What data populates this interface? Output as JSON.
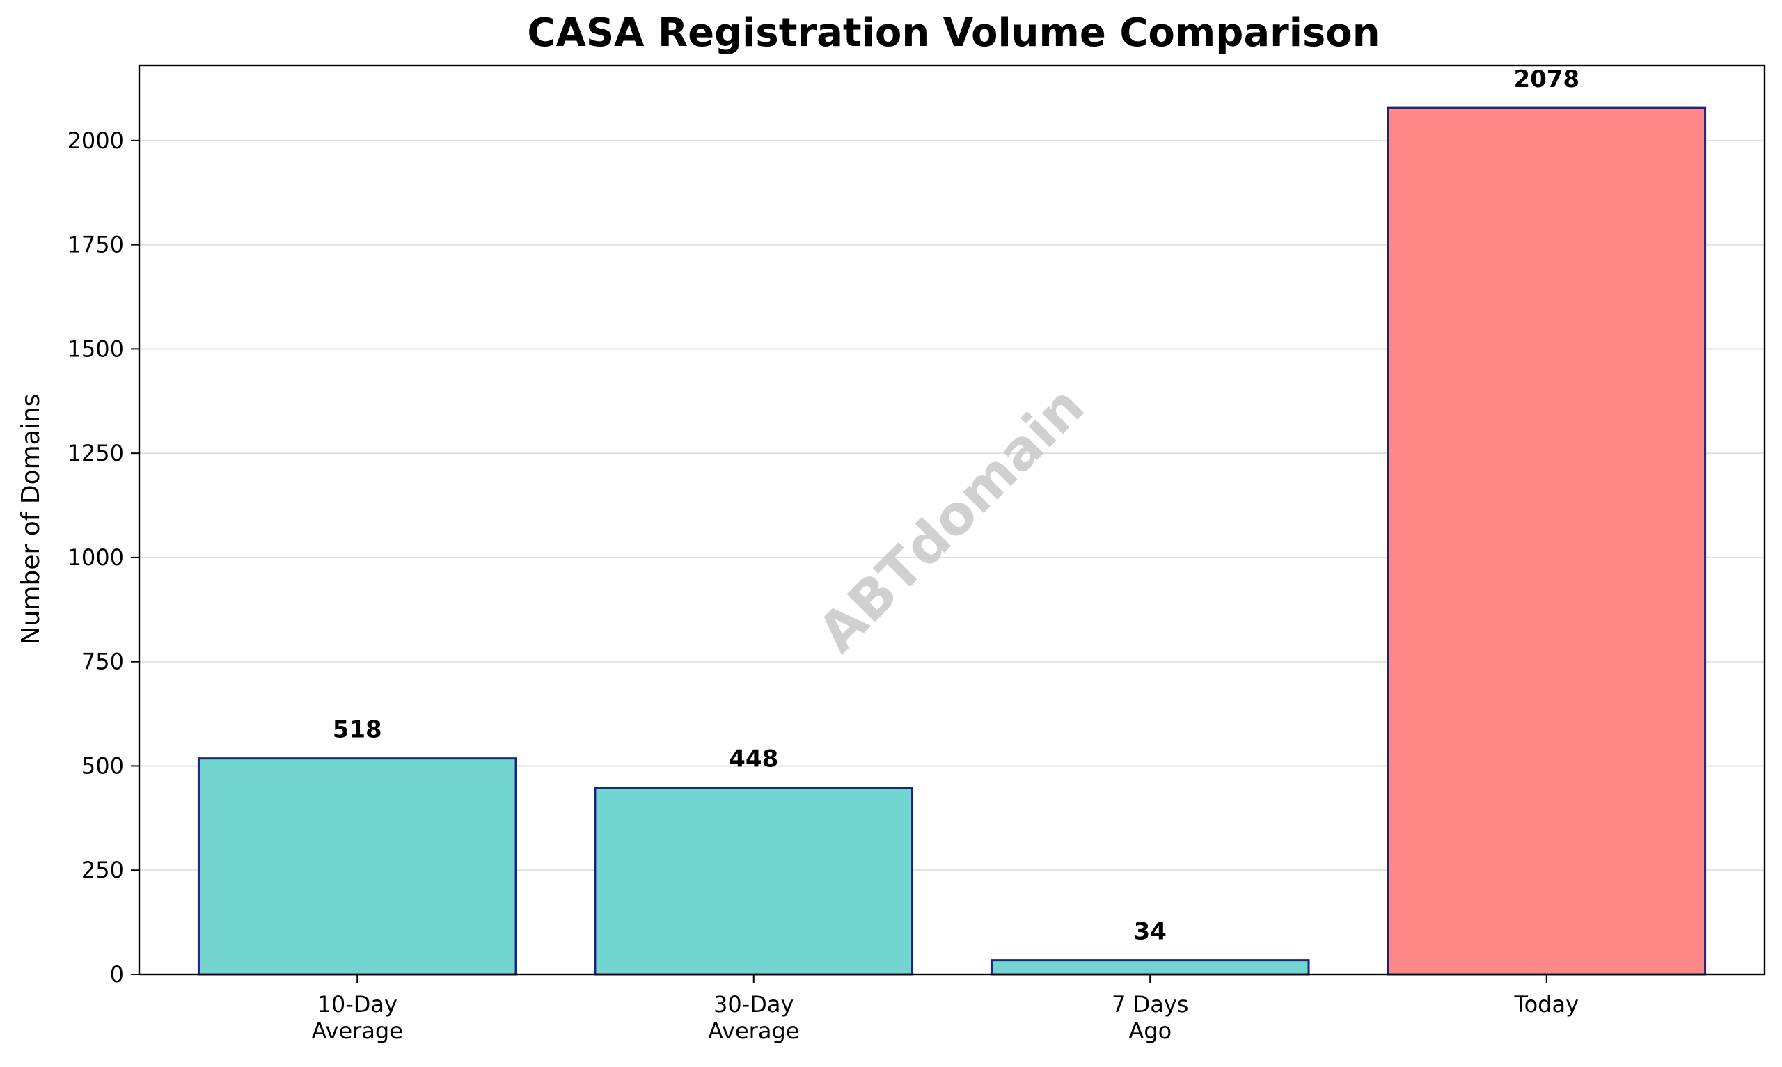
{
  "chart_data": {
    "type": "bar",
    "title": "CASA Registration Volume Comparison",
    "xlabel": "",
    "ylabel": "Number of Domains",
    "categories": [
      [
        "10-Day",
        "Average"
      ],
      [
        "30-Day",
        "Average"
      ],
      [
        "7 Days",
        "Ago"
      ],
      [
        "Today"
      ]
    ],
    "values": [
      518,
      448,
      34,
      2078
    ],
    "data_labels": [
      "518",
      "448",
      "34",
      "2078"
    ],
    "bar_colors": [
      "#72d5cf",
      "#72d5cf",
      "#72d5cf",
      "#ff8787"
    ],
    "bar_edge_color": "#1a237e",
    "ylim": [
      0,
      2180
    ],
    "yticks": [
      0,
      250,
      500,
      750,
      1000,
      1250,
      1500,
      1750,
      2000
    ],
    "grid": "y",
    "legend": "none",
    "watermark": "ABTdomain"
  }
}
